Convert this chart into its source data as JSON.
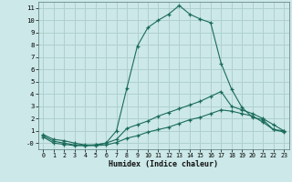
{
  "xlabel": "Humidex (Indice chaleur)",
  "bg_color": "#cce8e8",
  "grid_color": "#b0d0d0",
  "line_color": "#1a6b5a",
  "xlim": [
    -0.5,
    23.5
  ],
  "ylim": [
    -0.5,
    11.5
  ],
  "xticks": [
    0,
    1,
    2,
    3,
    4,
    5,
    6,
    7,
    8,
    9,
    10,
    11,
    12,
    13,
    14,
    15,
    16,
    17,
    18,
    19,
    20,
    21,
    22,
    23
  ],
  "yticks": [
    0,
    1,
    2,
    3,
    4,
    5,
    6,
    7,
    8,
    9,
    10,
    11
  ],
  "ytick_labels": [
    "-0",
    "1",
    "2",
    "3",
    "4",
    "5",
    "6",
    "7",
    "8",
    "9",
    "10",
    "11"
  ],
  "series": [
    {
      "x": [
        0,
        1,
        2,
        3,
        4,
        5,
        6,
        7,
        8,
        9,
        10,
        11,
        12,
        13,
        14,
        15,
        16,
        17,
        18,
        19,
        20,
        21,
        22,
        23
      ],
      "y": [
        0.7,
        0.3,
        0.2,
        0.0,
        -0.15,
        -0.15,
        0.0,
        1.0,
        4.5,
        7.9,
        9.4,
        10.0,
        10.5,
        11.2,
        10.5,
        10.1,
        9.8,
        6.5,
        4.4,
        2.9,
        2.1,
        1.9,
        1.1,
        0.9
      ]
    },
    {
      "x": [
        0,
        1,
        2,
        3,
        4,
        5,
        6,
        7,
        8,
        9,
        10,
        11,
        12,
        13,
        14,
        15,
        16,
        17,
        18,
        19,
        20,
        21,
        22,
        23
      ],
      "y": [
        0.6,
        0.15,
        0.0,
        -0.15,
        -0.2,
        -0.15,
        0.0,
        0.3,
        1.2,
        1.5,
        1.8,
        2.2,
        2.5,
        2.8,
        3.1,
        3.4,
        3.8,
        4.2,
        3.0,
        2.7,
        2.4,
        2.0,
        1.5,
        1.0
      ]
    },
    {
      "x": [
        0,
        1,
        2,
        3,
        4,
        5,
        6,
        7,
        8,
        9,
        10,
        11,
        12,
        13,
        14,
        15,
        16,
        17,
        18,
        19,
        20,
        21,
        22,
        23
      ],
      "y": [
        0.5,
        0.0,
        -0.1,
        -0.2,
        -0.2,
        -0.2,
        -0.15,
        0.05,
        0.4,
        0.6,
        0.9,
        1.1,
        1.3,
        1.6,
        1.9,
        2.1,
        2.4,
        2.7,
        2.6,
        2.4,
        2.2,
        1.7,
        1.1,
        1.0
      ]
    }
  ]
}
